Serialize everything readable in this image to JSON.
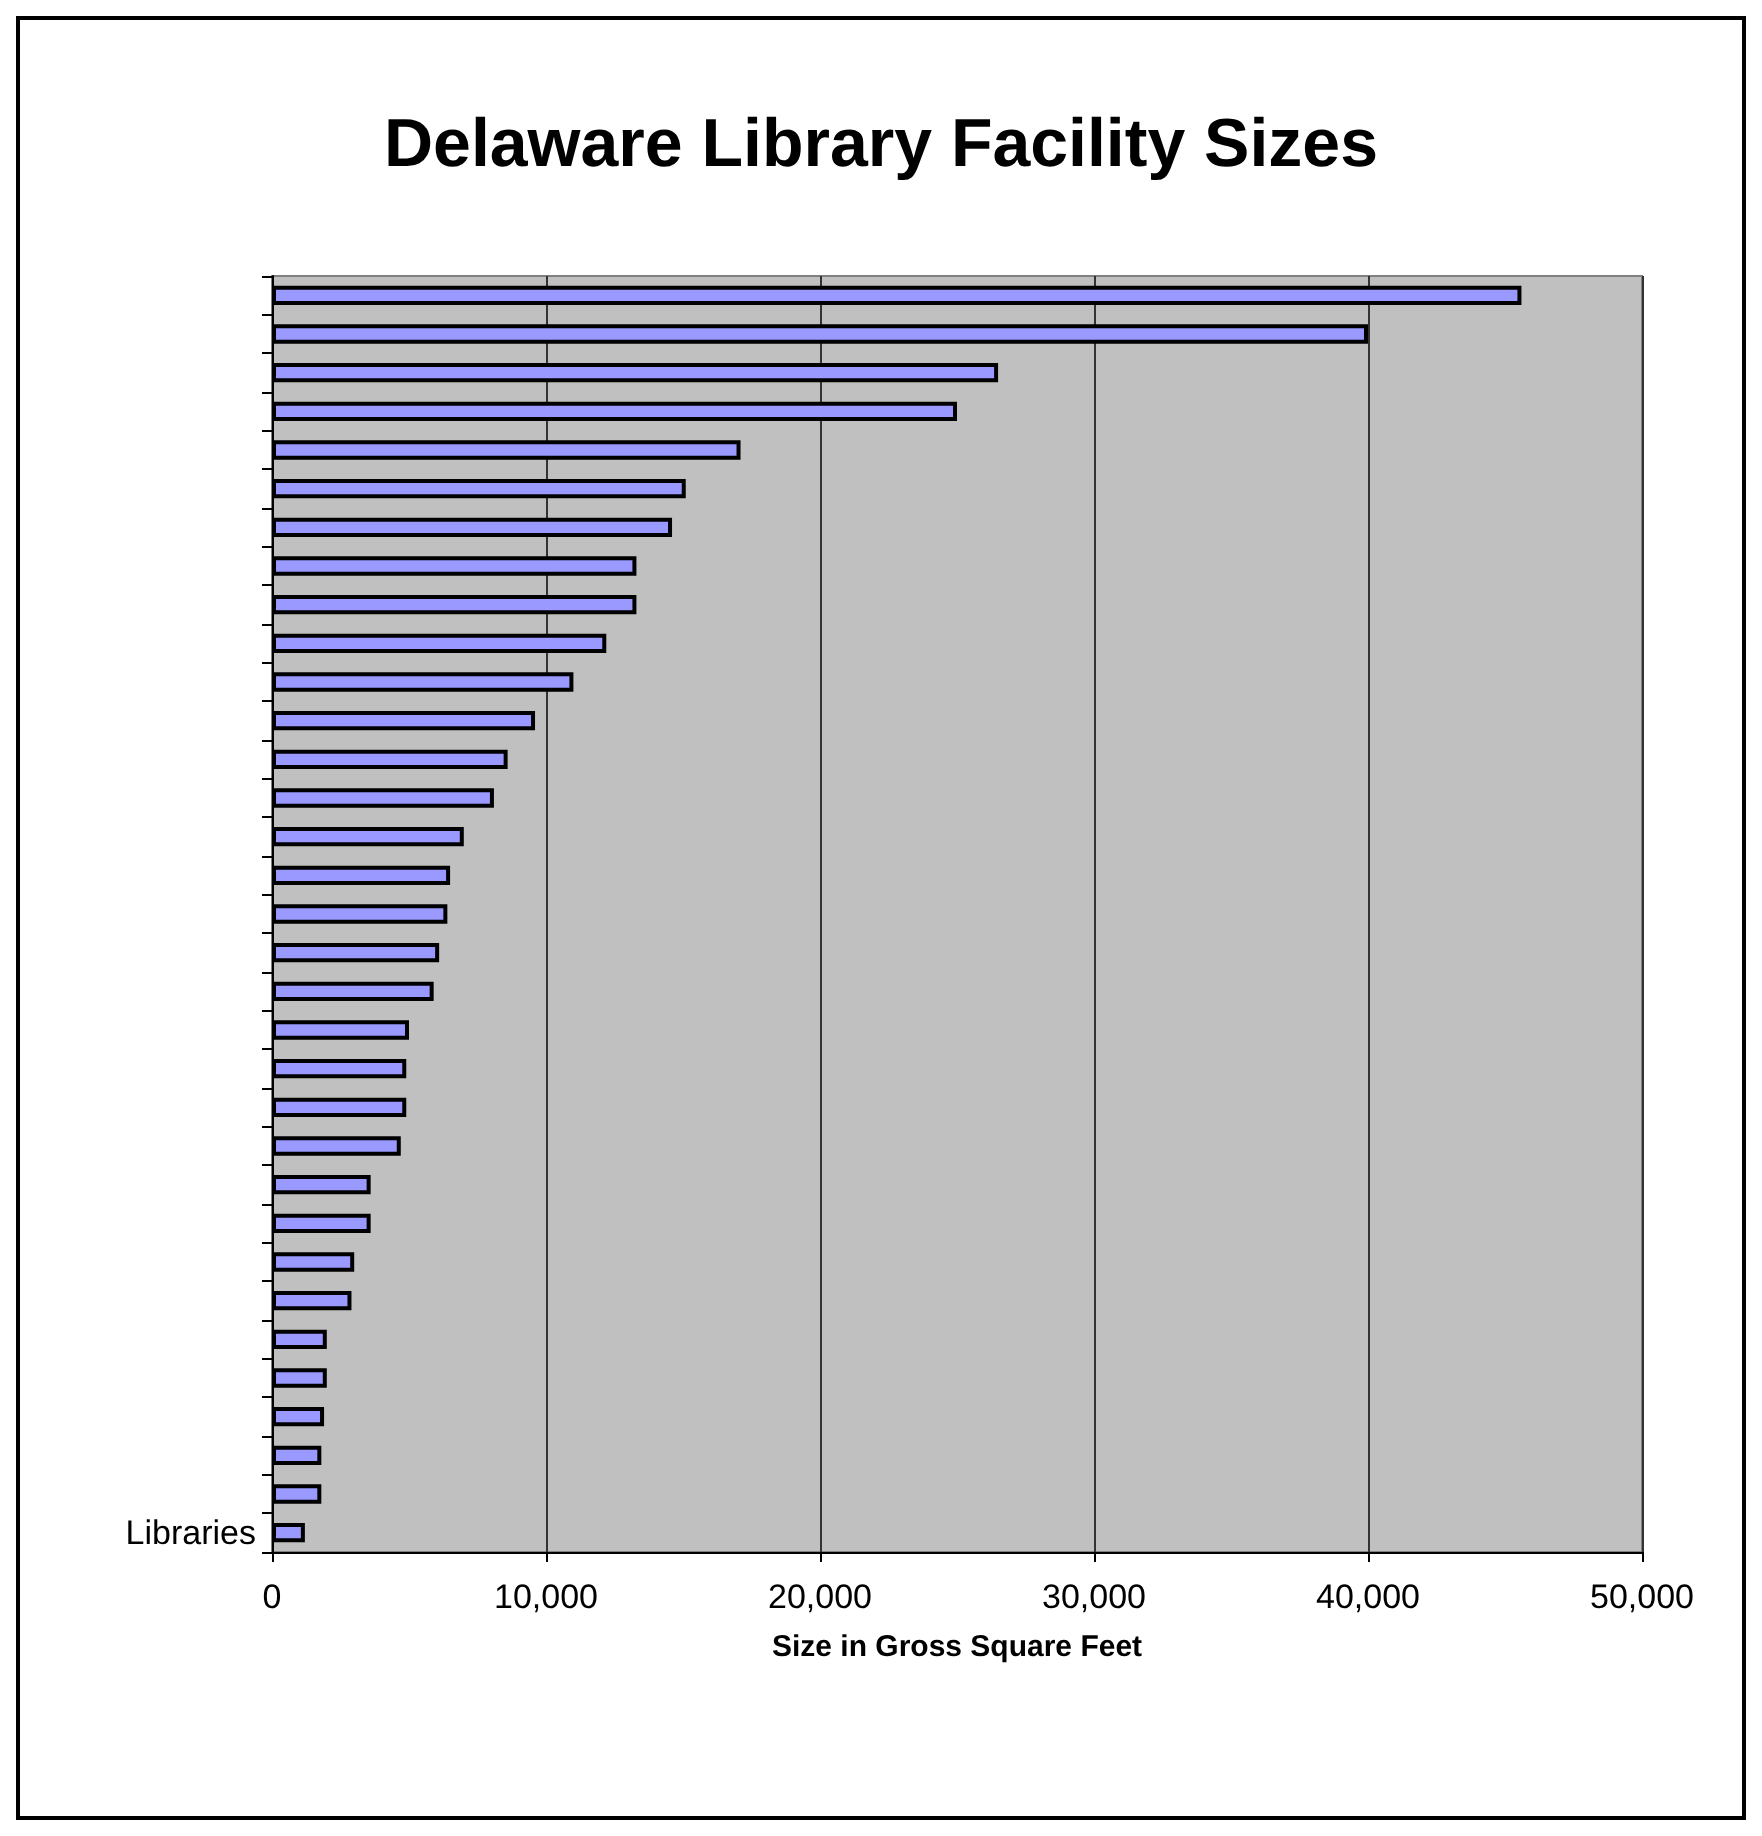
{
  "chart_data": {
    "type": "bar",
    "orientation": "horizontal",
    "title": "Delaware Library Facility Sizes",
    "xlabel": "Size in Gross Square Feet",
    "categories": [
      null,
      null,
      null,
      null,
      null,
      null,
      null,
      null,
      null,
      null,
      null,
      null,
      null,
      null,
      null,
      null,
      null,
      null,
      null,
      null,
      null,
      null,
      null,
      null,
      null,
      null,
      null,
      null,
      null,
      null,
      null,
      null,
      "Libraries"
    ],
    "values": [
      45600,
      40000,
      26500,
      25000,
      17100,
      15100,
      14600,
      13300,
      13300,
      12200,
      11000,
      9600,
      8600,
      8100,
      7000,
      6500,
      6400,
      6100,
      5900,
      5000,
      4900,
      4900,
      4700,
      3600,
      3600,
      3000,
      2900,
      2000,
      2000,
      1900,
      1800,
      1800,
      1200
    ],
    "color": "#9999ff",
    "xlim": [
      0,
      50000
    ],
    "xticks": [
      0,
      {
        "value": 10000,
        "label": "10,000"
      },
      {
        "value": 20000,
        "label": "20,000"
      },
      {
        "value": 30000,
        "label": "30,000"
      },
      {
        "value": 40000,
        "label": "40,000"
      },
      {
        "value": 50000,
        "label": "50,000"
      }
    ],
    "grid": "x"
  }
}
